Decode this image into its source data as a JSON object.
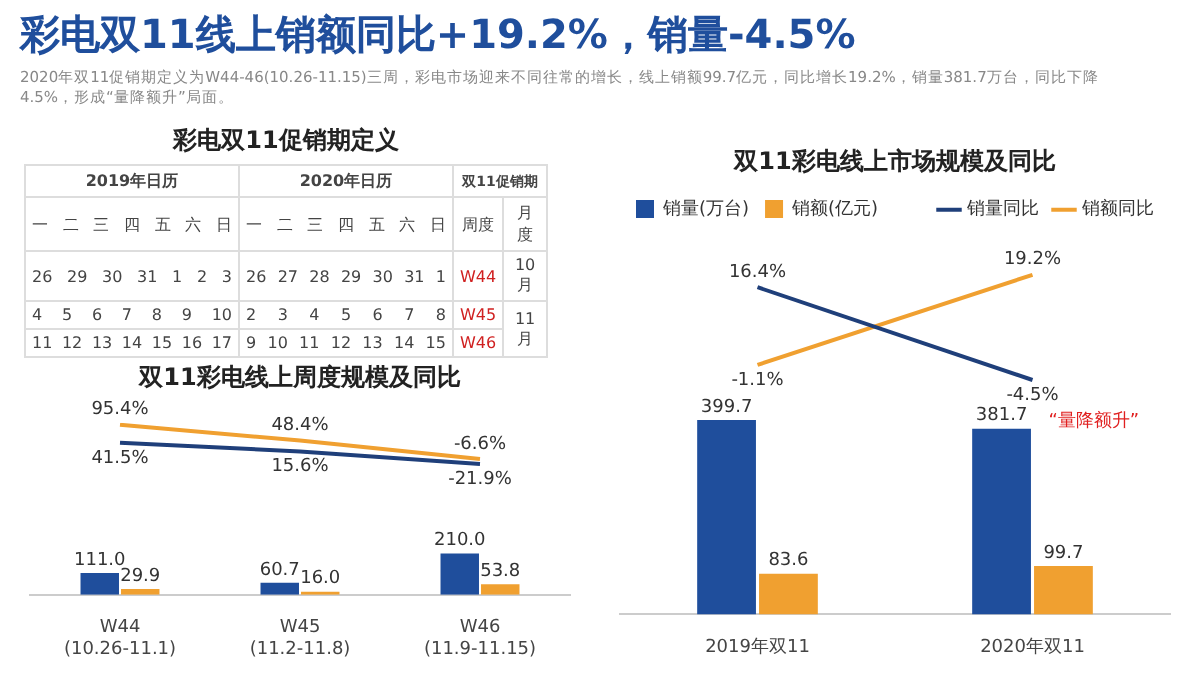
{
  "chart_data": [
    {
      "type": "other",
      "title": "彩电双11线上销额同比+19.2%，销量-4.5%",
      "subtitle": "2020年双11促销期定义为W44-46(10.26-11.15)三周，彩电市场迎来不同往常的增长，线上销额99.7亿元，同比增长19.2%，销量381.7万台，同比下降4.5%，形成“量降额升”局面。",
      "annotations": [
        "彩电双11促销期定义",
        "2019年日历",
        "2020年日历",
        "双11促销期",
        "一 二 三 四 五 六 日",
        "一 二 三 四 五 六 日",
        "周度",
        "月度",
        "26 29 30 31 1 2 3",
        "26 27 28 29 30 31 1",
        "W44",
        "10月",
        "4 5 6 7 8 9 10",
        "2 3 4 5 6 7 8",
        "W45",
        "11月",
        "11 12 13 14 15 16 17",
        "9 10 11 12 13 14 15",
        "W46"
      ]
    },
    {
      "type": "line",
      "title": "双11彩电线上周度规模及同比",
      "categories": [
        null,
        null,
        null
      ],
      "tick_labels": false,
      "series": [
        {
          "color": "#1f3f7a",
          "values": [
            41.5,
            15.6,
            -21.9
          ],
          "value_labels": [
            "41.5%",
            "15.6%",
            "-21.9%"
          ]
        },
        {
          "color": "#f0a030",
          "values": [
            95.4,
            48.4,
            -6.6
          ],
          "value_labels": [
            "95.4%",
            "48.4%",
            "-6.6%"
          ]
        }
      ]
    },
    {
      "type": "bar",
      "categories": [
        "W44\n(10.26-11.1)",
        "W45\n(11.2-11.8)",
        "W46\n(11.9-11.15)"
      ],
      "tick_labels": "x",
      "series": [
        {
          "color": "#1f4e9c",
          "values": [
            111.0,
            60.7,
            210.0
          ],
          "value_labels": [
            "111.0",
            "60.7",
            "210.0"
          ]
        },
        {
          "color": "#f0a030",
          "values": [
            29.9,
            16.0,
            53.8
          ],
          "value_labels": [
            "29.9",
            "16.0",
            "53.8"
          ]
        }
      ]
    },
    {
      "type": "line",
      "title": "双11彩电线上市场规模及同比",
      "categories": [
        null,
        null
      ],
      "tick_labels": false,
      "legend": "top",
      "annotations": [
        "“量降额升”"
      ],
      "series": [
        {
          "name": "销量同比",
          "color": "#1f3f7a",
          "values": [
            16.4,
            -4.5
          ],
          "value_labels": [
            "16.4%",
            "-4.5%"
          ]
        },
        {
          "name": "销额同比",
          "color": "#f0a030",
          "values": [
            -1.1,
            19.2
          ],
          "value_labels": [
            "-1.1%",
            "19.2%"
          ]
        }
      ]
    },
    {
      "type": "bar",
      "categories": [
        "2019年双11",
        "2020年双11"
      ],
      "tick_labels": "x",
      "legend": "top",
      "series": [
        {
          "name": "销量(万台)",
          "color": "#1f4e9c",
          "values": [
            399.7,
            381.7
          ],
          "value_labels": [
            "399.7",
            "381.7"
          ]
        },
        {
          "name": "销额(亿元)",
          "color": "#f0a030",
          "values": [
            83.6,
            99.7
          ],
          "value_labels": [
            "83.6",
            "99.7"
          ]
        }
      ]
    }
  ]
}
